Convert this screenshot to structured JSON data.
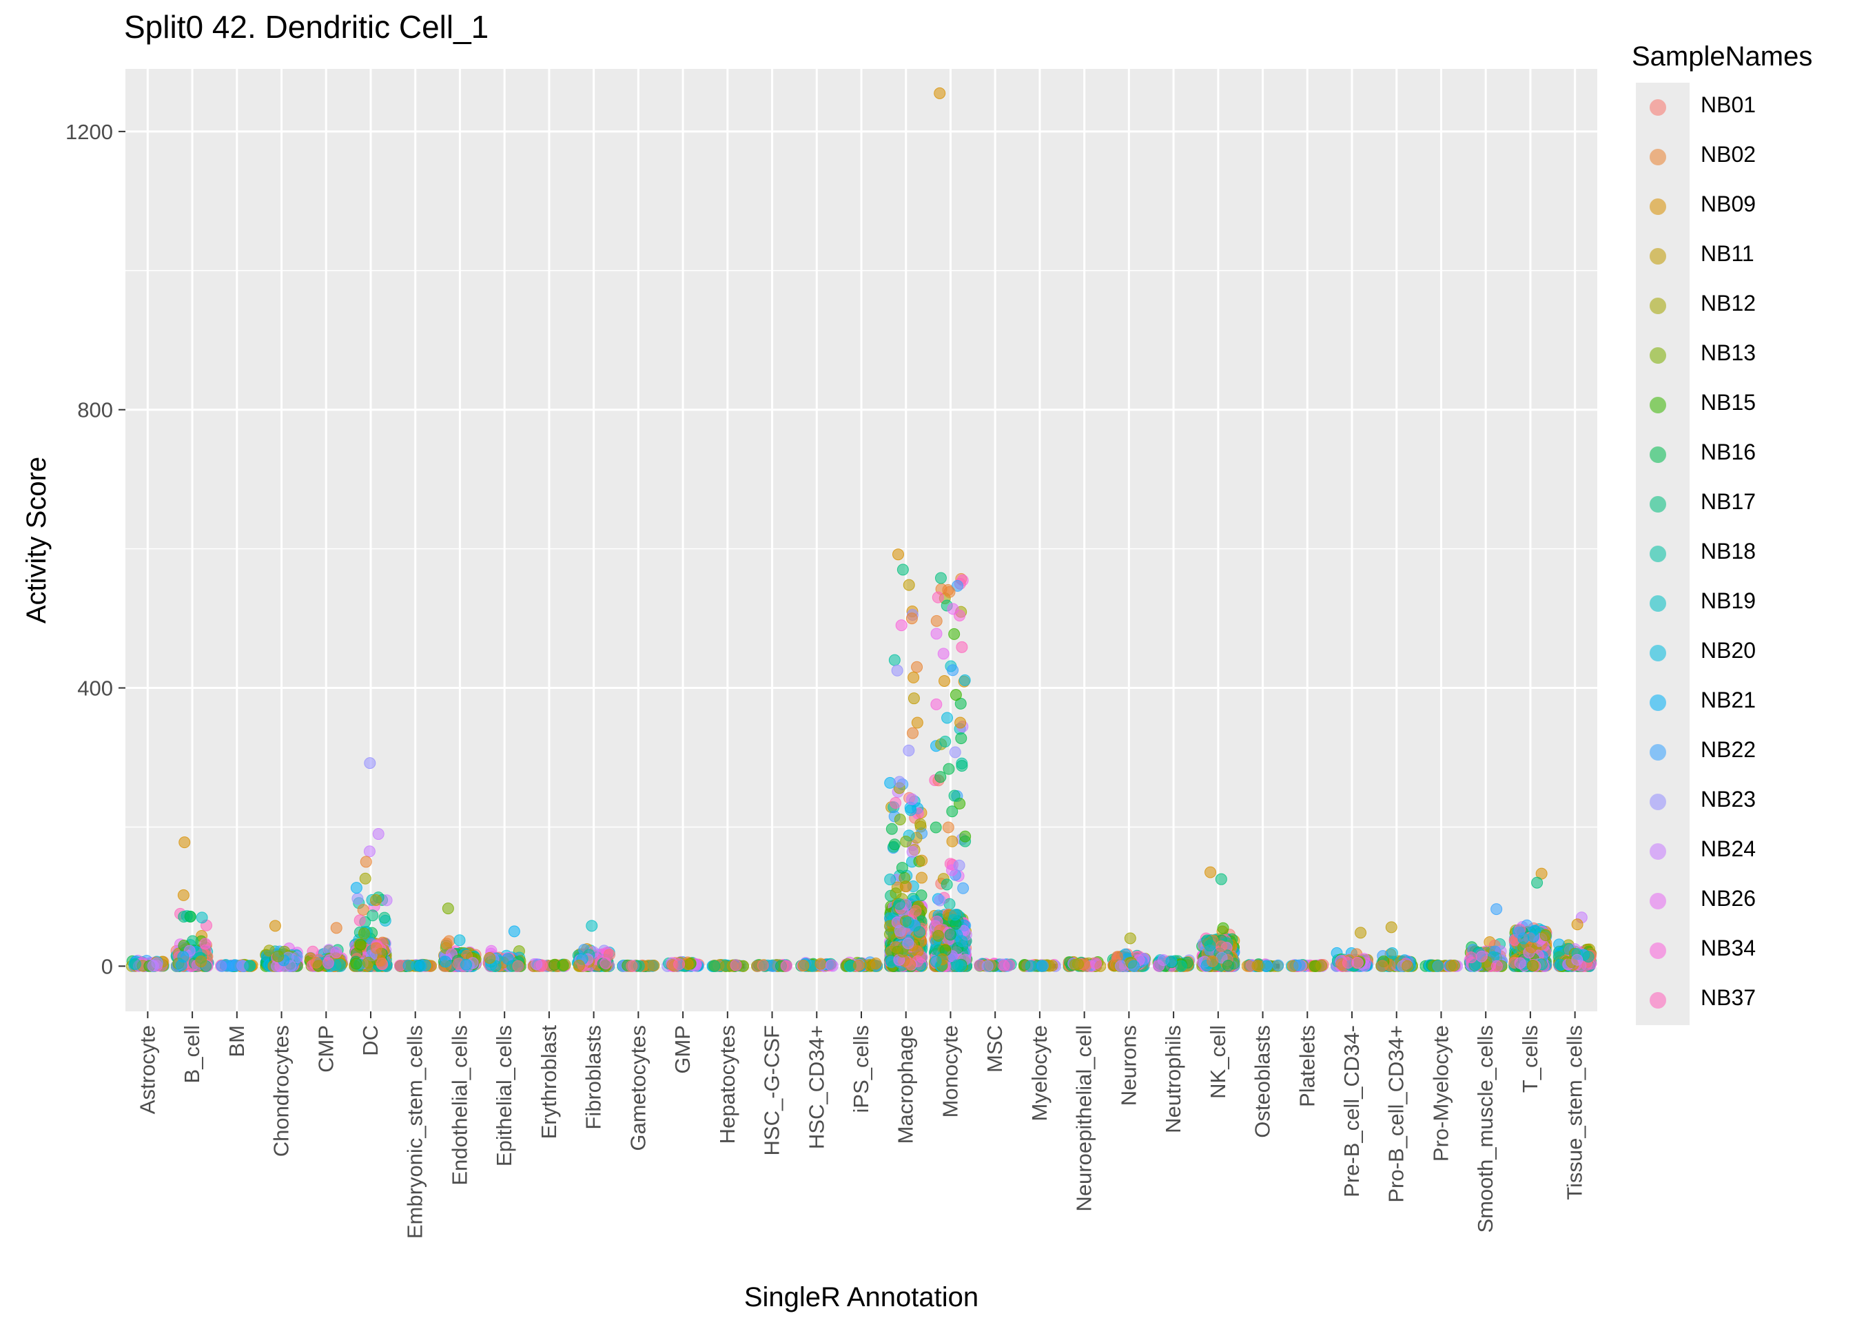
{
  "chart_data": {
    "type": "scatter",
    "subtype": "jitter-strip with boxplots",
    "title": "Split0 42. Dendritic Cell_1",
    "xlabel": "SingleR Annotation",
    "ylabel": "Activity Score",
    "ylim": [
      -65,
      1290
    ],
    "yticks": [
      0,
      400,
      800,
      1200
    ],
    "grid": true,
    "background": "#ebebeb",
    "legend_position": "right",
    "legend_title": "SampleNames",
    "categories": [
      "Astrocyte",
      "B_cell",
      "BM",
      "Chondrocytes",
      "CMP",
      "DC",
      "Embryonic_stem_cells",
      "Endothelial_cells",
      "Epithelial_cells",
      "Erythroblast",
      "Fibroblasts",
      "Gametocytes",
      "GMP",
      "Hepatocytes",
      "HSC_-G-CSF",
      "HSC_CD34+",
      "iPS_cells",
      "Macrophage",
      "Monocyte",
      "MSC",
      "Myelocyte",
      "Neuroepithelial_cell",
      "Neurons",
      "Neutrophils",
      "NK_cell",
      "Osteoblasts",
      "Platelets",
      "Pre-B_cell_CD34-",
      "Pro-B_cell_CD34+",
      "Pro-Myelocyte",
      "Smooth_muscle_cells",
      "T_cells",
      "Tissue_stem_cells"
    ],
    "category_max_score": [
      10,
      178,
      3,
      58,
      55,
      292,
      3,
      83,
      50,
      5,
      58,
      2,
      15,
      3,
      3,
      8,
      14,
      592,
      1255,
      10,
      3,
      14,
      40,
      30,
      135,
      8,
      3,
      48,
      56,
      3,
      82,
      133,
      70
    ],
    "category_spread": [
      8,
      25,
      2,
      18,
      12,
      35,
      2,
      20,
      14,
      3,
      18,
      1,
      6,
      2,
      2,
      5,
      6,
      90,
      75,
      4,
      2,
      6,
      14,
      10,
      40,
      3,
      2,
      10,
      8,
      2,
      22,
      50,
      25
    ],
    "series": [
      {
        "name": "NB01",
        "color": "#F8766D"
      },
      {
        "name": "NB02",
        "color": "#EA8331"
      },
      {
        "name": "NB09",
        "color": "#D89000"
      },
      {
        "name": "NB11",
        "color": "#C09B00"
      },
      {
        "name": "NB12",
        "color": "#A3A500"
      },
      {
        "name": "NB13",
        "color": "#7CAE00"
      },
      {
        "name": "NB15",
        "color": "#39B600"
      },
      {
        "name": "NB16",
        "color": "#00BB4E"
      },
      {
        "name": "NB17",
        "color": "#00BF7D"
      },
      {
        "name": "NB18",
        "color": "#00C1A3"
      },
      {
        "name": "NB19",
        "color": "#00BFC4"
      },
      {
        "name": "NB20",
        "color": "#00BAE0"
      },
      {
        "name": "NB21",
        "color": "#00B0F6"
      },
      {
        "name": "NB22",
        "color": "#35A2FF"
      },
      {
        "name": "NB23",
        "color": "#9590FF"
      },
      {
        "name": "NB24",
        "color": "#C77CFF"
      },
      {
        "name": "NB26",
        "color": "#E76BF3"
      },
      {
        "name": "NB34",
        "color": "#FA62DB"
      },
      {
        "name": "NB37",
        "color": "#FF62BC"
      }
    ],
    "notable_points": [
      {
        "category": "Monocyte",
        "y": 1255,
        "series": "NB09"
      },
      {
        "category": "Macrophage",
        "y": 592,
        "series": "NB09"
      },
      {
        "category": "Macrophage",
        "y": 570,
        "series": "NB17"
      },
      {
        "category": "Macrophage",
        "y": 548,
        "series": "NB11"
      },
      {
        "category": "Macrophage",
        "y": 510,
        "series": "NB09"
      },
      {
        "category": "Macrophage",
        "y": 505,
        "series": "NB23"
      },
      {
        "category": "Macrophage",
        "y": 500,
        "series": "NB02"
      },
      {
        "category": "Macrophage",
        "y": 490,
        "series": "NB34"
      },
      {
        "category": "Macrophage",
        "y": 440,
        "series": "NB18"
      },
      {
        "category": "Macrophage",
        "y": 430,
        "series": "NB02"
      },
      {
        "category": "Macrophage",
        "y": 425,
        "series": "NB23"
      },
      {
        "category": "Macrophage",
        "y": 415,
        "series": "NB09"
      },
      {
        "category": "Monocyte",
        "y": 410,
        "series": "NB09"
      },
      {
        "category": "Monocyte",
        "y": 390,
        "series": "NB15"
      },
      {
        "category": "Macrophage",
        "y": 385,
        "series": "NB11"
      },
      {
        "category": "Monocyte",
        "y": 350,
        "series": "NB09"
      },
      {
        "category": "Macrophage",
        "y": 350,
        "series": "NB09"
      },
      {
        "category": "Macrophage",
        "y": 335,
        "series": "NB02"
      },
      {
        "category": "Macrophage",
        "y": 310,
        "series": "NB23"
      },
      {
        "category": "DC",
        "y": 292,
        "series": "NB23"
      },
      {
        "category": "Monocyte",
        "y": 288,
        "series": "NB17"
      },
      {
        "category": "Monocyte",
        "y": 272,
        "series": "NB16"
      },
      {
        "category": "Macrophage",
        "y": 265,
        "series": "NB23"
      },
      {
        "category": "Monocyte",
        "y": 245,
        "series": "NB17"
      },
      {
        "category": "Macrophage",
        "y": 240,
        "series": "NB24"
      },
      {
        "category": "DC",
        "y": 190,
        "series": "NB24"
      },
      {
        "category": "B_cell",
        "y": 178,
        "series": "NB09"
      },
      {
        "category": "DC",
        "y": 165,
        "series": "NB24"
      },
      {
        "category": "DC",
        "y": 150,
        "series": "NB02"
      },
      {
        "category": "NK_cell",
        "y": 135,
        "series": "NB09"
      },
      {
        "category": "T_cells",
        "y": 133,
        "series": "NB09"
      },
      {
        "category": "NK_cell",
        "y": 125,
        "series": "NB17"
      },
      {
        "category": "T_cells",
        "y": 120,
        "series": "NB17"
      },
      {
        "category": "B_cell",
        "y": 102,
        "series": "NB09"
      },
      {
        "category": "DC",
        "y": 95,
        "series": "NB11"
      },
      {
        "category": "Endothelial_cells",
        "y": 83,
        "series": "NB13"
      },
      {
        "category": "Smooth_muscle_cells",
        "y": 82,
        "series": "NB22"
      },
      {
        "category": "Tissue_stem_cells",
        "y": 70,
        "series": "NB24"
      },
      {
        "category": "Tissue_stem_cells",
        "y": 60,
        "series": "NB09"
      },
      {
        "category": "Chondrocytes",
        "y": 58,
        "series": "NB09"
      },
      {
        "category": "Fibroblasts",
        "y": 58,
        "series": "NB19"
      },
      {
        "category": "Pro-B_cell_CD34+",
        "y": 56,
        "series": "NB11"
      },
      {
        "category": "CMP",
        "y": 55,
        "series": "NB02"
      },
      {
        "category": "Epithelial_cells",
        "y": 50,
        "series": "NB21"
      },
      {
        "category": "Pre-B_cell_CD34-",
        "y": 48,
        "series": "NB11"
      },
      {
        "category": "Neurons",
        "y": 40,
        "series": "NB12"
      }
    ]
  }
}
